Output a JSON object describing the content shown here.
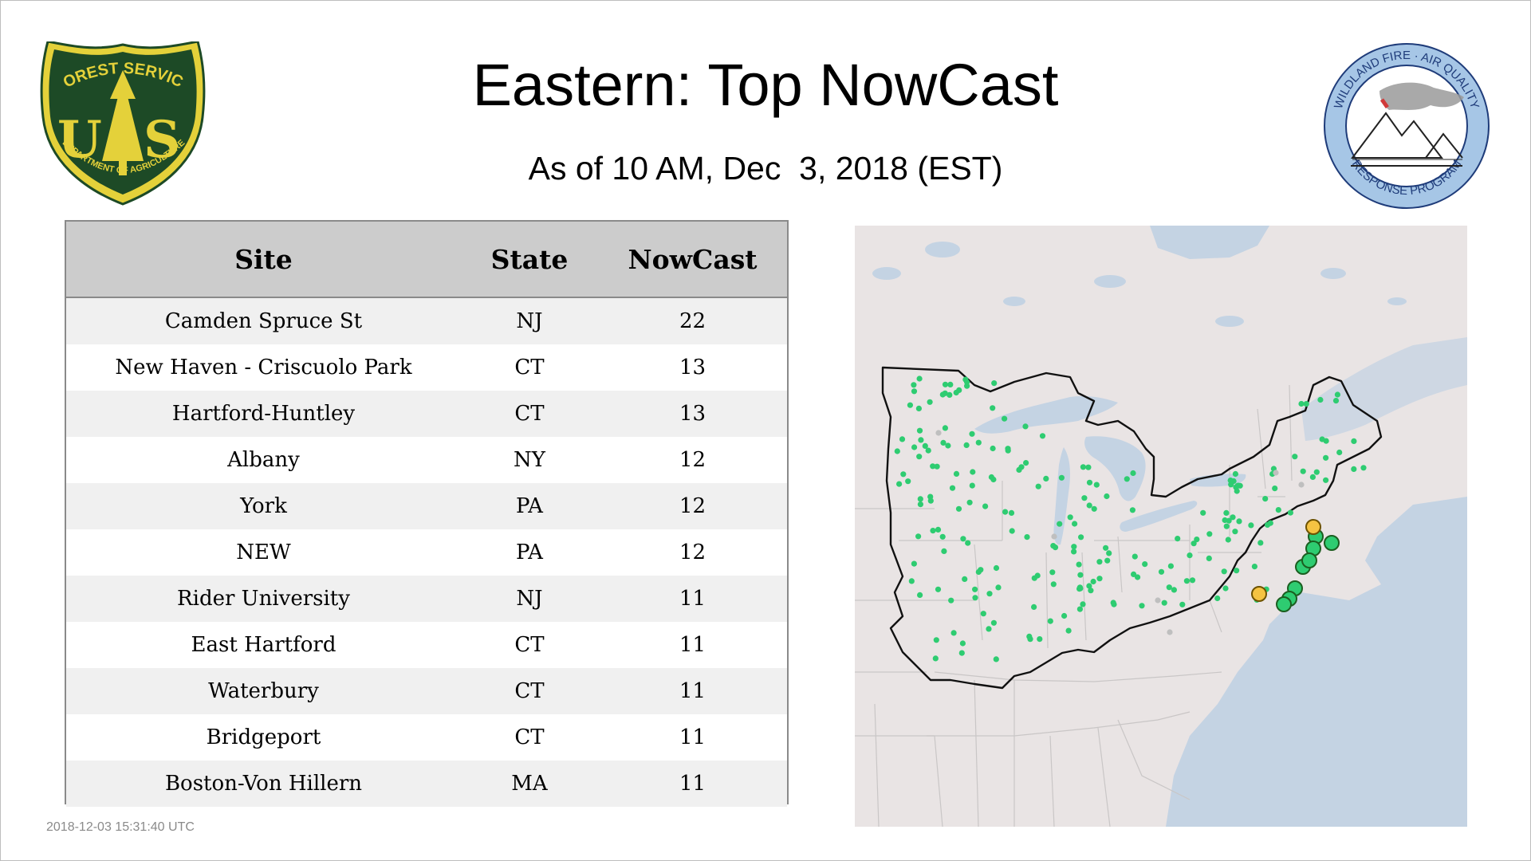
{
  "page": {
    "title": "Eastern: Top NowCast",
    "subtitle": "As of 10 AM, Dec  3, 2018 (EST)",
    "timestamp": "2018-12-03 15:31:40 UTC"
  },
  "logos": {
    "left": {
      "name": "usda-forest-service-shield",
      "top_text": "FOREST SERVICE",
      "bottom_text": "DEPARTMENT OF AGRICULTURE",
      "letters_left": "U",
      "letters_right": "S",
      "colors": {
        "green": "#1d4a26",
        "gold": "#e4d13a"
      }
    },
    "right": {
      "name": "wildland-fire-air-quality-badge",
      "top_text": "WILDLAND FIRE · AIR QUALITY",
      "bottom_text": "RESPONSE PROGRAM",
      "colors": {
        "ring": "#a6c6e6",
        "text": "#1f3c7a"
      }
    }
  },
  "table": {
    "headers": [
      "Site",
      "State",
      "NowCast"
    ],
    "rows": [
      {
        "site": "Camden Spruce St",
        "state": "NJ",
        "nowcast": "22"
      },
      {
        "site": "New Haven - Criscuolo Park",
        "state": "CT",
        "nowcast": "13"
      },
      {
        "site": "Hartford-Huntley",
        "state": "CT",
        "nowcast": "13"
      },
      {
        "site": "Albany",
        "state": "NY",
        "nowcast": "12"
      },
      {
        "site": "York",
        "state": "PA",
        "nowcast": "12"
      },
      {
        "site": "NEW",
        "state": "PA",
        "nowcast": "12"
      },
      {
        "site": "Rider University",
        "state": "NJ",
        "nowcast": "11"
      },
      {
        "site": "East Hartford",
        "state": "CT",
        "nowcast": "11"
      },
      {
        "site": "Waterbury",
        "state": "CT",
        "nowcast": "11"
      },
      {
        "site": "Bridgeport",
        "state": "CT",
        "nowcast": "11"
      },
      {
        "site": "Boston-Von Hillern",
        "state": "MA",
        "nowcast": "11"
      }
    ]
  },
  "map": {
    "region": "Eastern United States",
    "colors": {
      "land": "#e9e4e4",
      "water": "#c4d3e3",
      "region_outline": "#111111",
      "state_lines": "#c9c6c6",
      "good": "#2ecc71",
      "moderate": "#f5c342",
      "no_data": "#bfbfbf"
    }
  }
}
